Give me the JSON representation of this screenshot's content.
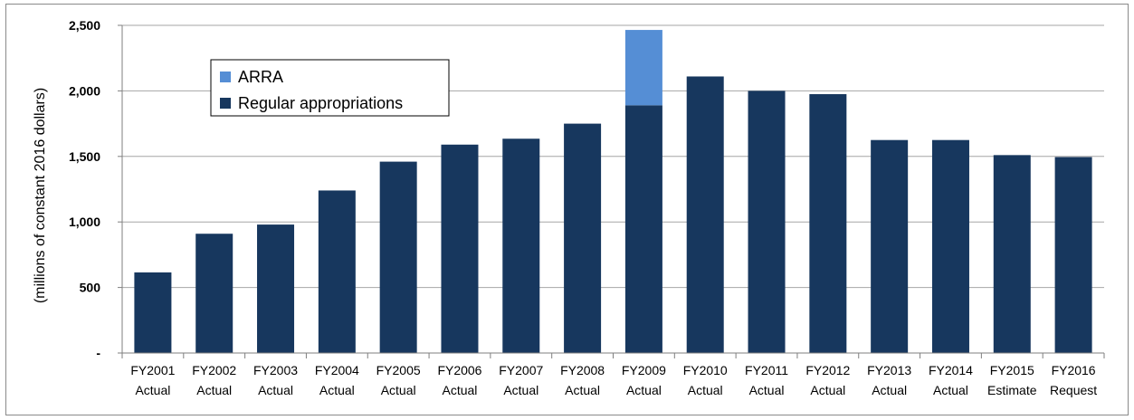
{
  "chart_data": {
    "type": "bar",
    "stacked": true,
    "title": "",
    "xlabel": "",
    "ylabel": "(millions of  constant 2016 dollars)",
    "ylim": [
      0,
      2500
    ],
    "yticks": [
      {
        "value": 0,
        "label": "-"
      },
      {
        "value": 500,
        "label": "500"
      },
      {
        "value": 1000,
        "label": "1,000"
      },
      {
        "value": 1500,
        "label": "1,500"
      },
      {
        "value": 2000,
        "label": "2,000"
      },
      {
        "value": 2500,
        "label": "2,500"
      }
    ],
    "grid": "horizontal",
    "legend": {
      "placement": "top-left",
      "entries": [
        {
          "name": "ARRA",
          "color": "#558ED5"
        },
        {
          "name": "Regular appropriations",
          "color": "#17375E"
        }
      ]
    },
    "categories": [
      [
        "FY2001",
        "Actual"
      ],
      [
        "FY2002",
        "Actual"
      ],
      [
        "FY2003",
        "Actual"
      ],
      [
        "FY2004",
        "Actual"
      ],
      [
        "FY2005",
        "Actual"
      ],
      [
        "FY2006",
        "Actual"
      ],
      [
        "FY2007",
        "Actual"
      ],
      [
        "FY2008",
        "Actual"
      ],
      [
        "FY2009",
        "Actual"
      ],
      [
        "FY2010",
        "Actual"
      ],
      [
        "FY2011",
        "Actual"
      ],
      [
        "FY2012",
        "Actual"
      ],
      [
        "FY2013",
        "Actual"
      ],
      [
        "FY2014",
        "Actual"
      ],
      [
        "FY2015",
        "Estimate"
      ],
      [
        "FY2016",
        "Request"
      ]
    ],
    "series": [
      {
        "name": "Regular appropriations",
        "color": "#17375E",
        "values": [
          615,
          910,
          980,
          1240,
          1460,
          1590,
          1635,
          1750,
          1890,
          2110,
          2000,
          1975,
          1625,
          1625,
          1510,
          1495
        ]
      },
      {
        "name": "ARRA",
        "color": "#558ED5",
        "values": [
          0,
          0,
          0,
          0,
          0,
          0,
          0,
          0,
          575,
          0,
          0,
          0,
          0,
          0,
          0,
          0
        ]
      }
    ]
  }
}
